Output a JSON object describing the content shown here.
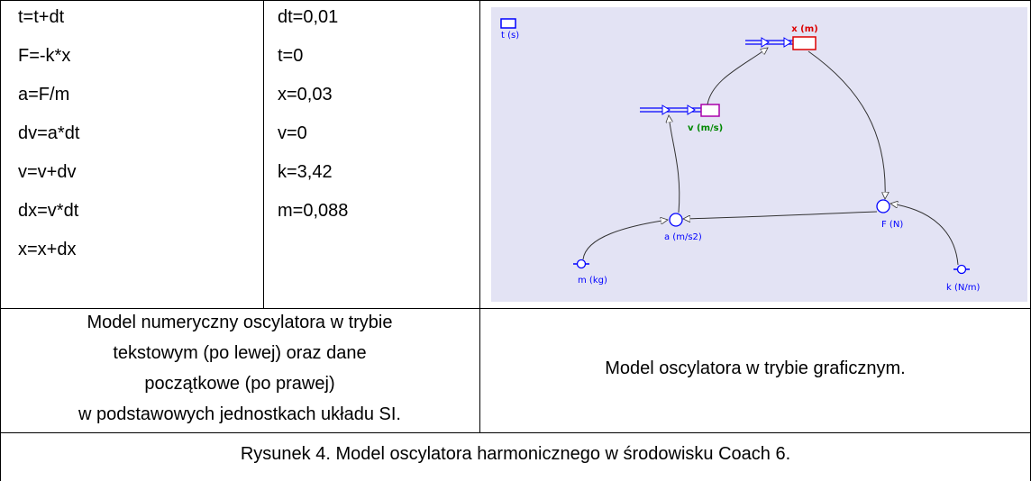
{
  "code_lines": [
    "t=t+dt",
    "F=-k*x",
    "a=F/m",
    "dv=a*dt",
    "v=v+dv",
    "dx=v*dt",
    "x=x+dx"
  ],
  "initial_values": [
    "dt=0,01",
    "t=0",
    "x=0,03",
    "v=0",
    "k=3,42",
    "m=0,088"
  ],
  "diagram": {
    "labels": {
      "t": "t (s)",
      "x": "x (m)",
      "v": "v (m/s)",
      "a": "a (m/s2)",
      "F": "F (N)",
      "m": "m (kg)",
      "k": "k (N/m)"
    }
  },
  "caption_left": [
    "Model numeryczny oscylatora w trybie",
    "tekstowym (po lewej) oraz dane",
    "początkowe (po prawej)",
    "w podstawowych jednostkach układu SI."
  ],
  "caption_right": "Model oscylatora w trybie graficznym.",
  "figure_caption": "Rysunek 4. Model oscylatora harmonicznego w środowisku Coach 6."
}
